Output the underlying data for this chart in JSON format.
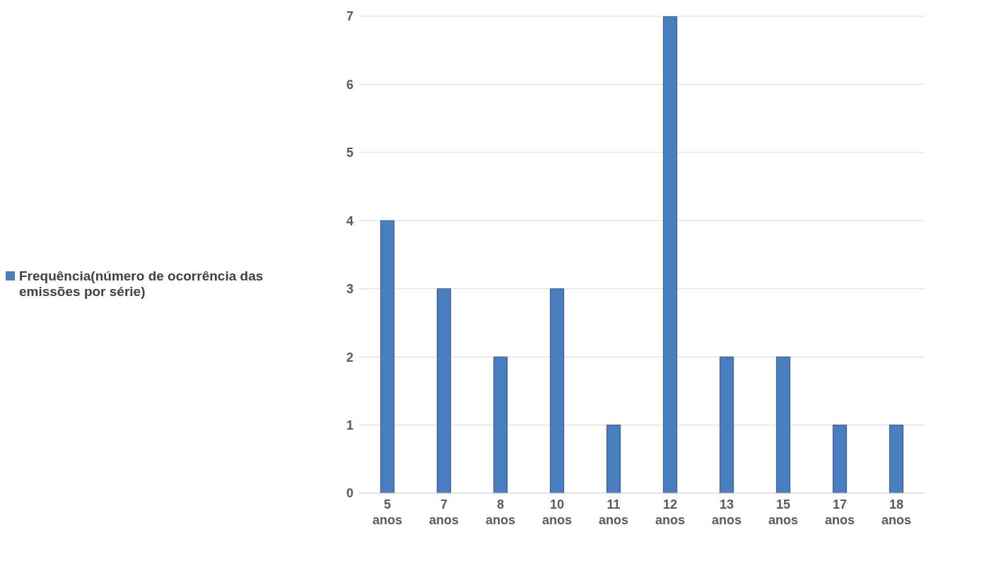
{
  "chart_data": {
    "type": "bar",
    "categories": [
      "5 anos",
      "7 anos",
      "8 anos",
      "10 anos",
      "11 anos",
      "12 anos",
      "13 anos",
      "15 anos",
      "17 anos",
      "18 anos"
    ],
    "series": [
      {
        "name": "Frequência(número de ocorrência das emissões por série)",
        "color": "#4a7ebf",
        "values": [
          4,
          3,
          2,
          3,
          1,
          7,
          2,
          2,
          1,
          1
        ]
      }
    ],
    "ylim": [
      0,
      7
    ],
    "yticks": [
      0,
      1,
      2,
      3,
      4,
      5,
      6,
      7
    ],
    "grid": "y",
    "legend": "left"
  }
}
